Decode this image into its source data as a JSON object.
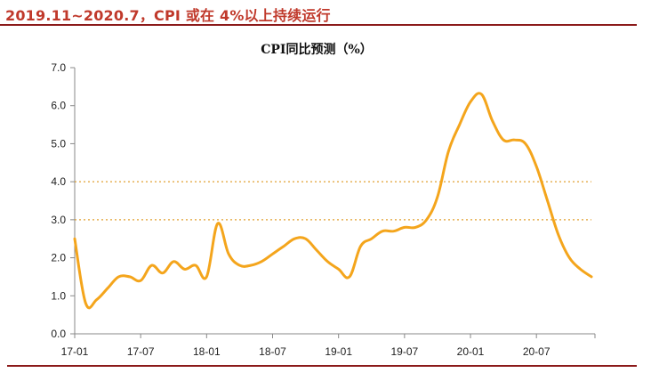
{
  "header": {
    "title": "2019.11~2020.7，CPI 或在 4%以上持续运行",
    "accent_color": "#c0392b",
    "rule_color": "#8b1a1a"
  },
  "chart_data": {
    "type": "line",
    "title": "CPI同比预测（%）",
    "xlabel": "",
    "ylabel": "",
    "ylim": [
      0,
      7
    ],
    "yticks": [
      "0.0",
      "1.0",
      "2.0",
      "3.0",
      "4.0",
      "5.0",
      "6.0",
      "7.0"
    ],
    "xticks": [
      "17-01",
      "17-07",
      "18-01",
      "18-07",
      "19-01",
      "19-07",
      "20-01",
      "20-07"
    ],
    "reference_lines": [
      4.0,
      3.0
    ],
    "line_color": "#f4a51c",
    "ref_line_color": "#e0a030",
    "grid": false,
    "series": [
      {
        "x": [
          "2017-01",
          "2017-02",
          "2017-03",
          "2017-04",
          "2017-05",
          "2017-06",
          "2017-07",
          "2017-08",
          "2017-09",
          "2017-10",
          "2017-11",
          "2017-12",
          "2018-01",
          "2018-02",
          "2018-03",
          "2018-04",
          "2018-05",
          "2018-06",
          "2018-07",
          "2018-08",
          "2018-09",
          "2018-10",
          "2018-11",
          "2018-12",
          "2019-01",
          "2019-02",
          "2019-03",
          "2019-04",
          "2019-05",
          "2019-06",
          "2019-07",
          "2019-08",
          "2019-09",
          "2019-10",
          "2019-11",
          "2019-12",
          "2020-01",
          "2020-02",
          "2020-03",
          "2020-04",
          "2020-05",
          "2020-06",
          "2020-07",
          "2020-08",
          "2020-09",
          "2020-10",
          "2020-11",
          "2020-12"
        ],
        "values": [
          2.5,
          0.8,
          0.9,
          1.2,
          1.5,
          1.5,
          1.4,
          1.8,
          1.6,
          1.9,
          1.7,
          1.8,
          1.5,
          2.9,
          2.1,
          1.8,
          1.8,
          1.9,
          2.1,
          2.3,
          2.5,
          2.5,
          2.2,
          1.9,
          1.7,
          1.5,
          2.3,
          2.5,
          2.7,
          2.7,
          2.8,
          2.8,
          3.0,
          3.6,
          4.8,
          5.5,
          6.1,
          6.3,
          5.6,
          5.1,
          5.1,
          5.0,
          4.4,
          3.5,
          2.6,
          2.0,
          1.7,
          1.5
        ]
      }
    ]
  }
}
